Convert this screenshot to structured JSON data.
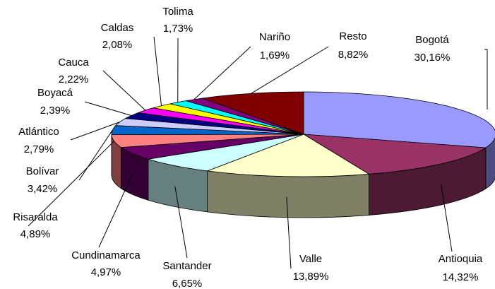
{
  "chart_data": {
    "type": "pie3d",
    "categories": [
      "Bogotá",
      "Antioquia",
      "Valle",
      "Santander",
      "Cundinamarca",
      "Risaralda",
      "Bolívar",
      "Atlántico",
      "Boyacá",
      "Cauca",
      "Caldas",
      "Tolima",
      "Nariño",
      "Resto"
    ],
    "values": [
      30.16,
      14.32,
      13.89,
      6.65,
      4.97,
      4.89,
      3.42,
      2.79,
      2.39,
      2.22,
      2.08,
      1.73,
      1.69,
      8.82
    ],
    "value_labels": [
      "30,16%",
      "14,32%",
      "13,89%",
      "6,65%",
      "4,97%",
      "4,89%",
      "3,42%",
      "2,79%",
      "2,39%",
      "2,22%",
      "2,08%",
      "1,73%",
      "1,69%",
      "8,82%"
    ],
    "colors": [
      "#9999ff",
      "#993366",
      "#ffffcc",
      "#ccffff",
      "#660066",
      "#ff8080",
      "#0066cc",
      "#ccccff",
      "#000080",
      "#ff00ff",
      "#ffff00",
      "#00ffff",
      "#800080",
      "#800000"
    ]
  }
}
